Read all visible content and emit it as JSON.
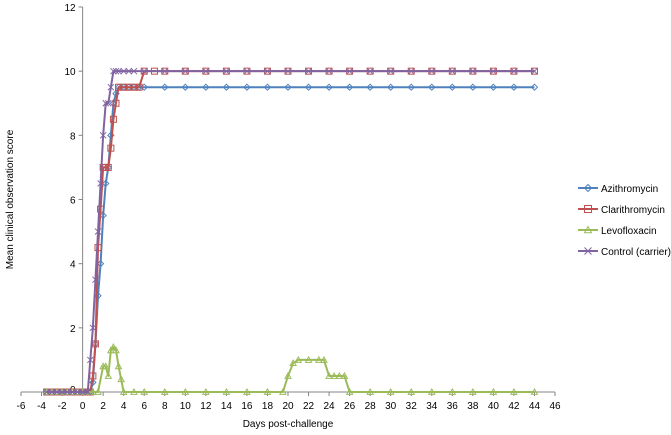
{
  "chart_data": {
    "type": "line",
    "xlabel": "Days post-challenge",
    "ylabel": "Mean clinical observation score",
    "xlim": [
      -6,
      46
    ],
    "ylim": [
      0,
      12
    ],
    "x_ticks": [
      -6,
      -4,
      -2,
      0,
      2,
      4,
      6,
      8,
      10,
      12,
      14,
      16,
      18,
      20,
      22,
      24,
      26,
      28,
      30,
      32,
      34,
      36,
      38,
      40,
      42,
      44,
      46
    ],
    "y_ticks": [
      2,
      4,
      6,
      8,
      10,
      12
    ],
    "y_zero_label": "0",
    "grid": false,
    "legend_position": "right",
    "series": [
      {
        "name": "Azithromycin",
        "color": "#4F81BD",
        "marker": "diamond",
        "points": [
          [
            -3.5,
            0
          ],
          [
            -3,
            0
          ],
          [
            -2.5,
            0
          ],
          [
            -2,
            0
          ],
          [
            -1.5,
            0
          ],
          [
            -1,
            0
          ],
          [
            -0.5,
            0
          ],
          [
            0,
            0
          ],
          [
            0.5,
            0
          ],
          [
            0.75,
            0
          ],
          [
            1,
            0.3
          ],
          [
            1.25,
            1.5
          ],
          [
            1.5,
            3
          ],
          [
            1.75,
            4
          ],
          [
            2,
            5.5
          ],
          [
            2.25,
            6.5
          ],
          [
            2.5,
            7
          ],
          [
            2.75,
            8
          ],
          [
            3,
            9
          ],
          [
            3.25,
            9.3
          ],
          [
            3.5,
            9.5
          ],
          [
            4,
            9.5
          ],
          [
            4.5,
            9.5
          ],
          [
            5,
            9.5
          ],
          [
            5.5,
            9.5
          ],
          [
            6,
            9.5
          ],
          [
            8,
            9.5
          ],
          [
            10,
            9.5
          ],
          [
            12,
            9.5
          ],
          [
            14,
            9.5
          ],
          [
            16,
            9.5
          ],
          [
            18,
            9.5
          ],
          [
            20,
            9.5
          ],
          [
            22,
            9.5
          ],
          [
            24,
            9.5
          ],
          [
            26,
            9.5
          ],
          [
            28,
            9.5
          ],
          [
            30,
            9.5
          ],
          [
            32,
            9.5
          ],
          [
            34,
            9.5
          ],
          [
            36,
            9.5
          ],
          [
            38,
            9.5
          ],
          [
            40,
            9.5
          ],
          [
            42,
            9.5
          ],
          [
            44,
            9.5
          ]
        ]
      },
      {
        "name": "Clarithromycin",
        "color": "#C0504D",
        "marker": "square",
        "points": [
          [
            -3.5,
            0
          ],
          [
            -3,
            0
          ],
          [
            -2.5,
            0
          ],
          [
            -2,
            0
          ],
          [
            -1.5,
            0
          ],
          [
            -1,
            0
          ],
          [
            -0.5,
            0
          ],
          [
            0,
            0
          ],
          [
            0.5,
            0
          ],
          [
            0.75,
            0
          ],
          [
            1,
            0.5
          ],
          [
            1.25,
            1.5
          ],
          [
            1.5,
            4.5
          ],
          [
            1.75,
            5.7
          ],
          [
            2,
            7
          ],
          [
            2.25,
            7
          ],
          [
            2.5,
            7
          ],
          [
            2.75,
            7.6
          ],
          [
            3,
            8.5
          ],
          [
            3.25,
            9
          ],
          [
            3.5,
            9.5
          ],
          [
            4,
            9.5
          ],
          [
            4.5,
            9.5
          ],
          [
            5,
            9.5
          ],
          [
            5.5,
            9.5
          ],
          [
            6,
            10
          ],
          [
            7,
            10
          ],
          [
            8,
            10
          ],
          [
            10,
            10
          ],
          [
            12,
            10
          ],
          [
            14,
            10
          ],
          [
            16,
            10
          ],
          [
            18,
            10
          ],
          [
            20,
            10
          ],
          [
            22,
            10
          ],
          [
            24,
            10
          ],
          [
            26,
            10
          ],
          [
            28,
            10
          ],
          [
            30,
            10
          ],
          [
            32,
            10
          ],
          [
            34,
            10
          ],
          [
            36,
            10
          ],
          [
            38,
            10
          ],
          [
            40,
            10
          ],
          [
            42,
            10
          ],
          [
            44,
            10
          ]
        ]
      },
      {
        "name": "Levofloxacin",
        "color": "#9BBB59",
        "marker": "triangle",
        "points": [
          [
            -3.5,
            0
          ],
          [
            -3,
            0
          ],
          [
            -2.5,
            0
          ],
          [
            -2,
            0
          ],
          [
            -1.5,
            0
          ],
          [
            -1,
            0
          ],
          [
            -0.5,
            0
          ],
          [
            0,
            0
          ],
          [
            0.5,
            0
          ],
          [
            1,
            0
          ],
          [
            1.5,
            0
          ],
          [
            2,
            0.8
          ],
          [
            2.25,
            0.8
          ],
          [
            2.5,
            0.5
          ],
          [
            2.75,
            1.3
          ],
          [
            3,
            1.4
          ],
          [
            3.25,
            1.3
          ],
          [
            3.5,
            0.8
          ],
          [
            3.75,
            0.4
          ],
          [
            4,
            0
          ],
          [
            5,
            0
          ],
          [
            6,
            0
          ],
          [
            8,
            0
          ],
          [
            10,
            0
          ],
          [
            12,
            0
          ],
          [
            14,
            0
          ],
          [
            16,
            0
          ],
          [
            18,
            0
          ],
          [
            19.5,
            0
          ],
          [
            20,
            0.5
          ],
          [
            20.5,
            0.9
          ],
          [
            21,
            1
          ],
          [
            22,
            1
          ],
          [
            23,
            1
          ],
          [
            23.5,
            1
          ],
          [
            24,
            0.5
          ],
          [
            24.5,
            0.5
          ],
          [
            25,
            0.5
          ],
          [
            25.5,
            0.5
          ],
          [
            26,
            0
          ],
          [
            28,
            0
          ],
          [
            30,
            0
          ],
          [
            32,
            0
          ],
          [
            34,
            0
          ],
          [
            36,
            0
          ],
          [
            38,
            0
          ],
          [
            40,
            0
          ],
          [
            42,
            0
          ],
          [
            44,
            0
          ]
        ]
      },
      {
        "name": "Control (carrier)",
        "color": "#8064A2",
        "marker": "x",
        "points": [
          [
            -3.5,
            0
          ],
          [
            -3,
            0
          ],
          [
            -2.5,
            0
          ],
          [
            -2,
            0
          ],
          [
            -1.5,
            0
          ],
          [
            -1,
            0
          ],
          [
            -0.5,
            0
          ],
          [
            0,
            0
          ],
          [
            0.5,
            0
          ],
          [
            0.75,
            1
          ],
          [
            1,
            2
          ],
          [
            1.25,
            3.5
          ],
          [
            1.5,
            5
          ],
          [
            1.75,
            6.5
          ],
          [
            2,
            8
          ],
          [
            2.25,
            9
          ],
          [
            2.5,
            9
          ],
          [
            2.75,
            9.5
          ],
          [
            3,
            10
          ],
          [
            3.25,
            10
          ],
          [
            3.5,
            10
          ],
          [
            4,
            10
          ],
          [
            4.5,
            10
          ],
          [
            5,
            10
          ],
          [
            6,
            10
          ],
          [
            8,
            10
          ],
          [
            10,
            10
          ],
          [
            12,
            10
          ],
          [
            14,
            10
          ],
          [
            16,
            10
          ],
          [
            18,
            10
          ],
          [
            20,
            10
          ],
          [
            22,
            10
          ],
          [
            24,
            10
          ],
          [
            26,
            10
          ],
          [
            28,
            10
          ],
          [
            30,
            10
          ],
          [
            32,
            10
          ],
          [
            34,
            10
          ],
          [
            36,
            10
          ],
          [
            38,
            10
          ],
          [
            40,
            10
          ],
          [
            42,
            10
          ],
          [
            44,
            10
          ]
        ]
      }
    ]
  }
}
